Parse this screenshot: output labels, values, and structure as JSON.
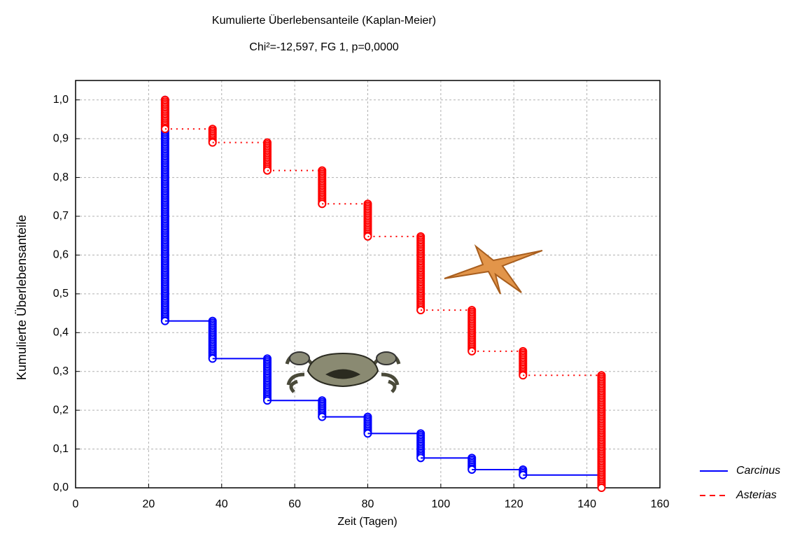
{
  "chart_data": {
    "type": "km",
    "title": "Kumulierte Überlebensanteile (Kaplan-Meier)",
    "subtitle": "Chi²=-12,597, FG 1, p=0,0000",
    "x_label": "Zeit (Tagen)",
    "y_label": "Kumulierte Überlebensanteile",
    "xlim": [
      0,
      160
    ],
    "xticks": [
      0,
      20,
      40,
      60,
      80,
      100,
      120,
      140,
      160
    ],
    "ylim": [
      0,
      1.05
    ],
    "yticks": [
      {
        "value": 0,
        "label": "0,0"
      },
      {
        "value": 0.1,
        "label": "0,1"
      },
      {
        "value": 0.2,
        "label": "0,2"
      },
      {
        "value": 0.3,
        "label": "0,3"
      },
      {
        "value": 0.4,
        "label": "0,4"
      },
      {
        "value": 0.5,
        "label": "0,5"
      },
      {
        "value": 0.6,
        "label": "0,6"
      },
      {
        "value": 0.7,
        "label": "0,7"
      },
      {
        "value": 0.8,
        "label": "0,8"
      },
      {
        "value": 0.9,
        "label": "0,9"
      },
      {
        "value": 1.0,
        "label": "1,0"
      }
    ],
    "grid": true,
    "legend": "right",
    "series": [
      {
        "name": "Carcinus",
        "color": "#0000ff",
        "dashed": false,
        "x": [
          24.5,
          24.5,
          37.5,
          52.5,
          67.5,
          80,
          94.5,
          108.5,
          122.5,
          143
        ],
        "values": [
          1.0,
          0.43,
          0.333,
          0.225,
          0.183,
          0.14,
          0.077,
          0.047,
          0.033,
          0.033
        ]
      },
      {
        "name": "Asterias",
        "color": "#ff0000",
        "dashed": true,
        "x": [
          24.5,
          24.5,
          37.5,
          52.5,
          67.5,
          80,
          94.5,
          108.5,
          122.5,
          144
        ],
        "values": [
          1.0,
          0.925,
          0.89,
          0.818,
          0.732,
          0.648,
          0.458,
          0.352,
          0.29,
          0.0
        ]
      }
    ]
  }
}
